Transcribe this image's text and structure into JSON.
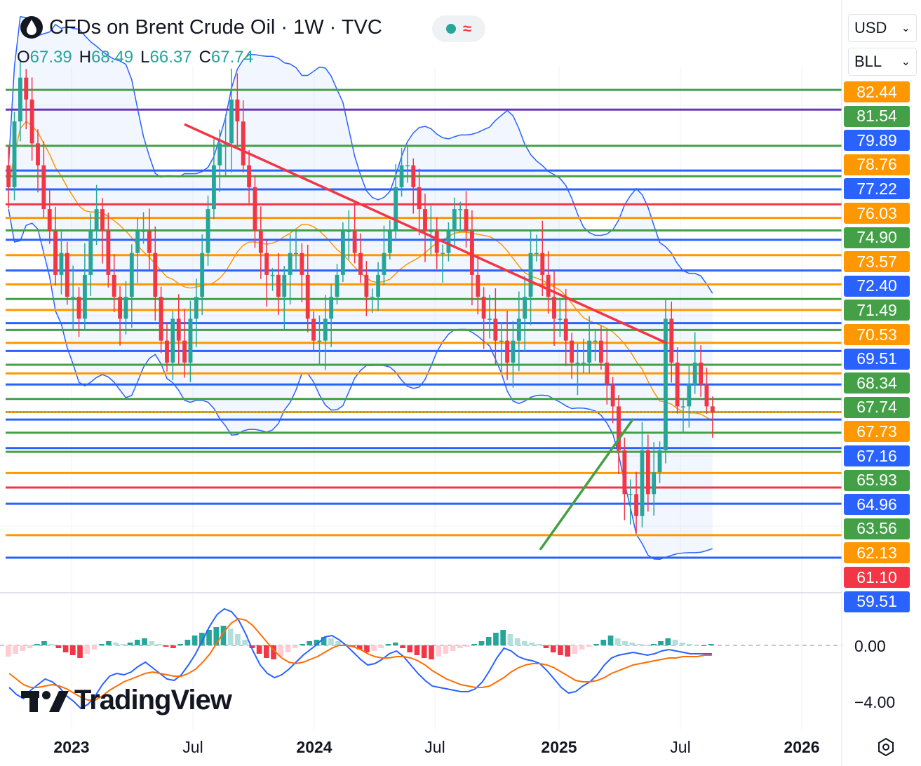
{
  "header": {
    "title": "CFDs on Brent Crude Oil · 1W · TVC",
    "ohlc": [
      {
        "key": "O",
        "value": "67.39"
      },
      {
        "key": "H",
        "value": "68.49"
      },
      {
        "key": "L",
        "value": "66.37"
      },
      {
        "key": "C",
        "value": "67.74"
      }
    ],
    "status_symbol": "≈"
  },
  "controls": {
    "currency": "USD",
    "unit": "BLL"
  },
  "colors": {
    "up": "#26a69a",
    "down": "#f23645",
    "green_level": "#43a047",
    "blue_level": "#2962ff",
    "orange_level": "#ff9800",
    "red_level": "#f23645",
    "purple_level": "#673ab7",
    "bollinger": "#2962ff",
    "ma": "#ff9800"
  },
  "price_axis": {
    "labels": [
      "82.44",
      "81.54",
      "79.89",
      "78.76",
      "77.22",
      "76.03",
      "74.90",
      "73.57",
      "72.40",
      "71.49",
      "70.53",
      "69.51",
      "68.34",
      "67.74",
      "67.73",
      "67.16",
      "65.93",
      "64.96",
      "63.56",
      "62.13",
      "61.10",
      "59.51"
    ],
    "colors": [
      "orange",
      "green",
      "blue",
      "orange",
      "blue",
      "orange",
      "green",
      "orange",
      "blue",
      "green",
      "orange",
      "blue",
      "green",
      "green",
      "orange",
      "blue",
      "green",
      "blue",
      "green",
      "orange",
      "red",
      "blue"
    ]
  },
  "time_axis": [
    {
      "label": "2023",
      "bold": true
    },
    {
      "label": "Jul",
      "bold": false
    },
    {
      "label": "2024",
      "bold": true
    },
    {
      "label": "Jul",
      "bold": false
    },
    {
      "label": "2025",
      "bold": true
    },
    {
      "label": "Jul",
      "bold": false
    },
    {
      "label": "2026",
      "bold": true
    }
  ],
  "macd_axis": [
    "0.00",
    "−4.00"
  ],
  "watermark": "TradingView",
  "chart_data": {
    "type": "candlestick",
    "title": "CFDs on Brent Crude Oil · 1W · TVC",
    "interval": "1W",
    "ylim": [
      59.5,
      83.5
    ],
    "levels": [
      {
        "price": 82.44,
        "color": "green"
      },
      {
        "price": 81.54,
        "color": "purple"
      },
      {
        "price": 79.89,
        "color": "green"
      },
      {
        "price": 78.76,
        "color": "blue"
      },
      {
        "price": 78.5,
        "color": "green"
      },
      {
        "price": 77.9,
        "color": "blue"
      },
      {
        "price": 77.22,
        "color": "red"
      },
      {
        "price": 76.6,
        "color": "orange"
      },
      {
        "price": 76.03,
        "color": "green"
      },
      {
        "price": 75.6,
        "color": "blue"
      },
      {
        "price": 74.9,
        "color": "orange"
      },
      {
        "price": 74.2,
        "color": "blue"
      },
      {
        "price": 73.57,
        "color": "orange"
      },
      {
        "price": 72.9,
        "color": "green"
      },
      {
        "price": 72.4,
        "color": "orange"
      },
      {
        "price": 71.8,
        "color": "blue"
      },
      {
        "price": 71.49,
        "color": "green"
      },
      {
        "price": 70.9,
        "color": "orange"
      },
      {
        "price": 70.53,
        "color": "blue"
      },
      {
        "price": 69.9,
        "color": "green"
      },
      {
        "price": 69.51,
        "color": "orange"
      },
      {
        "price": 69.0,
        "color": "blue"
      },
      {
        "price": 68.34,
        "color": "green"
      },
      {
        "price": 67.74,
        "color": "orange"
      },
      {
        "price": 67.4,
        "color": "blue"
      },
      {
        "price": 66.8,
        "color": "green"
      },
      {
        "price": 66.1,
        "color": "blue"
      },
      {
        "price": 65.93,
        "color": "green"
      },
      {
        "price": 64.96,
        "color": "orange"
      },
      {
        "price": 64.3,
        "color": "red"
      },
      {
        "price": 63.56,
        "color": "blue"
      },
      {
        "price": 62.13,
        "color": "orange"
      },
      {
        "price": 61.1,
        "color": "blue"
      }
    ],
    "trendlines": [
      {
        "color": "red",
        "from": [
          0.215,
          80.85
        ],
        "to": [
          0.79,
          70.9
        ]
      },
      {
        "color": "green",
        "from": [
          0.64,
          61.5
        ],
        "to": [
          0.75,
          67.4
        ]
      }
    ],
    "closes": [
      78,
      81,
      83,
      82,
      80,
      79,
      77,
      76,
      74,
      75,
      73,
      73,
      72,
      74,
      76,
      77,
      76,
      74,
      73,
      72,
      73,
      75,
      76,
      76,
      75,
      73,
      71,
      70,
      72,
      71,
      70,
      72,
      73,
      75,
      77,
      79,
      80,
      80,
      82,
      81,
      79,
      78,
      76,
      75,
      74,
      74,
      73,
      74,
      75,
      75,
      74,
      72,
      71,
      71,
      72,
      73,
      74,
      76,
      76,
      75,
      74,
      73,
      73,
      74,
      75,
      76,
      78,
      79,
      79,
      78,
      77,
      76,
      76,
      75,
      75,
      76,
      77,
      77,
      76,
      74,
      73,
      72,
      72,
      71,
      71,
      70,
      71,
      72,
      73,
      75,
      75,
      74,
      73,
      72,
      72,
      71,
      70,
      70,
      70,
      71,
      71,
      70,
      69,
      68,
      66,
      64,
      64,
      63,
      66,
      64,
      65,
      66,
      72,
      70,
      68,
      68,
      69,
      70,
      69,
      68,
      67.74
    ]
  },
  "macd": {
    "histogram": [
      -0.8,
      -0.6,
      -0.4,
      -0.2,
      0.1,
      0.3,
      0.1,
      -0.2,
      -0.5,
      -0.7,
      -0.9,
      -0.6,
      -0.3,
      0.1,
      0.3,
      0.2,
      0.1,
      0.2,
      0.4,
      0.5,
      0.3,
      0.1,
      -0.1,
      -0.2,
      0.1,
      0.4,
      0.7,
      0.9,
      1.1,
      1.3,
      1.4,
      1.2,
      0.8,
      0.4,
      -0.2,
      -0.6,
      -0.9,
      -1.0,
      -0.8,
      -0.5,
      -0.2,
      0.1,
      0.3,
      0.4,
      0.6,
      0.5,
      0.3,
      0.1,
      -0.1,
      -0.3,
      -0.5,
      -0.4,
      -0.2,
      0.1,
      0.2,
      -0.2,
      -0.5,
      -0.7,
      -0.9,
      -1.0,
      -0.8,
      -0.6,
      -0.4,
      -0.2,
      -0.1,
      0.1,
      0.3,
      0.6,
      0.9,
      1.1,
      0.8,
      0.5,
      0.3,
      0.2,
      0.1,
      -0.2,
      -0.5,
      -0.7,
      -0.8,
      -0.6,
      -0.3,
      -0.1,
      0.1,
      0.4,
      0.7,
      0.5,
      0.3,
      0.2,
      0.1,
      0.0,
      0.1,
      0.3,
      0.5,
      0.4,
      0.2,
      0.1,
      0.0,
      0.0,
      0.1
    ],
    "macd_line": [
      -3,
      -3.5,
      -3.8,
      -3.2,
      -2.8,
      -2.4,
      -2.6,
      -3,
      -3.6,
      -4,
      -4.5,
      -4.2,
      -3.6,
      -2.8,
      -2.2,
      -2,
      -2.1,
      -1.9,
      -1.5,
      -1.2,
      -1.6,
      -2,
      -2.4,
      -2.5,
      -2.1,
      -1.4,
      -0.6,
      0.4,
      1.4,
      2.2,
      2.6,
      2.4,
      1.8,
      0.8,
      -0.4,
      -1.4,
      -2,
      -2.3,
      -2.1,
      -1.7,
      -1.2,
      -0.7,
      -0.3,
      0.1,
      0.6,
      0.7,
      0.4,
      0,
      -0.5,
      -1,
      -1.4,
      -1.3,
      -1,
      -0.6,
      -0.4,
      -0.8,
      -1.4,
      -2,
      -2.5,
      -2.9,
      -3,
      -3.1,
      -3.2,
      -3.3,
      -3.3,
      -3.1,
      -2.6,
      -1.8,
      -0.9,
      -0.2,
      -0.4,
      -0.8,
      -1.0,
      -1.1,
      -1.3,
      -1.8,
      -2.4,
      -3,
      -3.4,
      -3.3,
      -2.9,
      -2.6,
      -2.1,
      -1.4,
      -0.9,
      -0.7,
      -0.6,
      -0.5,
      -0.6,
      -0.7,
      -0.6,
      -0.4,
      -0.3,
      -0.4,
      -0.5,
      -0.6,
      -0.6,
      -0.6,
      -0.6
    ],
    "signal_line": [
      -2,
      -2.4,
      -2.8,
      -3,
      -3,
      -2.9,
      -2.8,
      -2.9,
      -3.1,
      -3.4,
      -3.7,
      -3.9,
      -3.9,
      -3.6,
      -3.2,
      -2.9,
      -2.6,
      -2.4,
      -2.2,
      -2,
      -1.9,
      -2,
      -2.1,
      -2.2,
      -2.2,
      -2,
      -1.7,
      -1.2,
      -0.6,
      0.2,
      1,
      1.6,
      1.9,
      1.8,
      1.4,
      0.8,
      0.2,
      -0.4,
      -0.9,
      -1.2,
      -1.3,
      -1.2,
      -1,
      -0.8,
      -0.5,
      -0.2,
      0,
      0,
      -0.1,
      -0.3,
      -0.6,
      -0.8,
      -0.9,
      -0.9,
      -0.8,
      -0.8,
      -0.9,
      -1.1,
      -1.4,
      -1.8,
      -2.1,
      -2.4,
      -2.6,
      -2.8,
      -2.9,
      -3,
      -3,
      -2.9,
      -2.6,
      -2.3,
      -1.9,
      -1.6,
      -1.4,
      -1.3,
      -1.3,
      -1.4,
      -1.6,
      -1.9,
      -2.2,
      -2.5,
      -2.6,
      -2.6,
      -2.5,
      -2.3,
      -2,
      -1.8,
      -1.6,
      -1.4,
      -1.3,
      -1.2,
      -1.1,
      -1,
      -0.9,
      -0.9,
      -0.8,
      -0.8,
      -0.8,
      -0.7,
      -0.7
    ]
  }
}
